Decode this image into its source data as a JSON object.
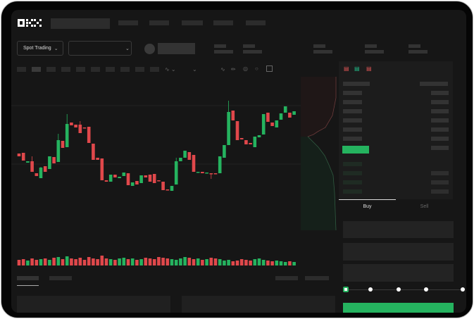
{
  "header": {
    "logo": "OKX",
    "market_type": "Spot Trading"
  },
  "trade": {
    "tabs": [
      "Buy",
      "Sell"
    ],
    "active_tab": "Buy"
  },
  "colors": {
    "up": "#25b35f",
    "down": "#e0484b",
    "background": "#161616"
  },
  "toolbar_icons": [
    "indicator-icon",
    "chevron-down-icon",
    "line-tool-icon",
    "pencil-icon",
    "brush-icon",
    "circle-icon",
    "fullscreen-icon"
  ],
  "orderbook_icons": [
    "both-sides-icon",
    "bids-only-icon",
    "asks-only-icon"
  ],
  "slider_percent": 0,
  "chart_data": {
    "type": "candlestick",
    "candles": [
      [
        96,
        96,
        92,
        92
      ],
      [
        97,
        97,
        86,
        86
      ],
      [
        83,
        85,
        83,
        85
      ],
      [
        85,
        92,
        70,
        70
      ],
      [
        68,
        68,
        64,
        64
      ],
      [
        61,
        77,
        61,
        76
      ],
      [
        78,
        78,
        70,
        70
      ],
      [
        74,
        92,
        74,
        92
      ],
      [
        91,
        91,
        82,
        82
      ],
      [
        84,
        124,
        84,
        115
      ],
      [
        114,
        114,
        104,
        104
      ],
      [
        105,
        152,
        105,
        138
      ],
      [
        140,
        140,
        136,
        136
      ],
      [
        137,
        137,
        133,
        133
      ],
      [
        137,
        142,
        125,
        125
      ],
      [
        133,
        133,
        132,
        132
      ],
      [
        134,
        134,
        111,
        111
      ],
      [
        110,
        110,
        87,
        87
      ],
      [
        90,
        90,
        87,
        87
      ],
      [
        89,
        89,
        58,
        58
      ],
      [
        58,
        58,
        56,
        56
      ],
      [
        56,
        66,
        56,
        66
      ],
      [
        66,
        66,
        62,
        62
      ],
      [
        61,
        63,
        61,
        63
      ],
      [
        64,
        69,
        64,
        69
      ],
      [
        68,
        68,
        51,
        51
      ],
      [
        50,
        55,
        50,
        55
      ],
      [
        57,
        57,
        52,
        52
      ],
      [
        54,
        65,
        54,
        65
      ],
      [
        65,
        65,
        62,
        62
      ],
      [
        66,
        66,
        56,
        56
      ],
      [
        67,
        67,
        54,
        54
      ],
      [
        58,
        58,
        57,
        57
      ],
      [
        56,
        56,
        44,
        44
      ],
      [
        45,
        45,
        44,
        44
      ],
      [
        43,
        50,
        43,
        50
      ],
      [
        52,
        90,
        52,
        85
      ],
      [
        85,
        90,
        85,
        90
      ],
      [
        90,
        100,
        90,
        100
      ],
      [
        98,
        98,
        87,
        87
      ],
      [
        94,
        94,
        70,
        70
      ],
      [
        69,
        70,
        69,
        70
      ],
      [
        70,
        70,
        68,
        68
      ],
      [
        68,
        69,
        68,
        69
      ],
      [
        68,
        68,
        60,
        67
      ],
      [
        68,
        68,
        67,
        67
      ],
      [
        68,
        92,
        68,
        92
      ],
      [
        90,
        108,
        90,
        108
      ],
      [
        108,
        171,
        108,
        155
      ],
      [
        157,
        157,
        143,
        143
      ],
      [
        142,
        142,
        115,
        115
      ],
      [
        118,
        118,
        116,
        116
      ],
      [
        115,
        115,
        109,
        109
      ],
      [
        111,
        111,
        109,
        109
      ],
      [
        105,
        120,
        105,
        120
      ],
      [
        119,
        122,
        119,
        122
      ],
      [
        123,
        152,
        123,
        152
      ],
      [
        154,
        154,
        141,
        141
      ],
      [
        140,
        140,
        135,
        135
      ],
      [
        133,
        143,
        133,
        143
      ],
      [
        144,
        153,
        144,
        153
      ],
      [
        154,
        163,
        154,
        163
      ],
      [
        154,
        154,
        147,
        147
      ],
      [
        151,
        156,
        151,
        156
      ]
    ],
    "volume": [
      8,
      9,
      7,
      10,
      8,
      9,
      10,
      8,
      11,
      12,
      9,
      13,
      10,
      9,
      11,
      8,
      12,
      10,
      9,
      14,
      10,
      9,
      8,
      10,
      11,
      9,
      10,
      8,
      9,
      11,
      10,
      9,
      12,
      11,
      10,
      9,
      8,
      10,
      12,
      11,
      9,
      10,
      8,
      9,
      11,
      10,
      9,
      7,
      8,
      6,
      7,
      9,
      8,
      7,
      9,
      10,
      8,
      7,
      6,
      7,
      6,
      5,
      6,
      5
    ]
  }
}
